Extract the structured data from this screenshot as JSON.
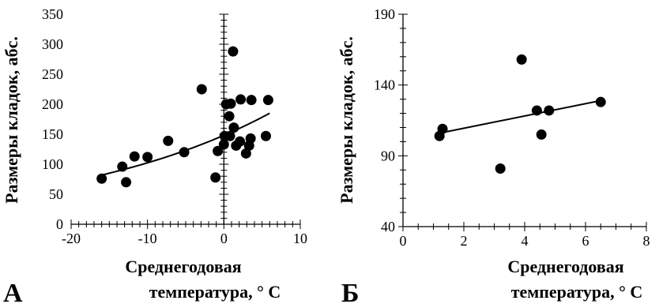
{
  "chart_data": [
    {
      "type": "scatter",
      "panel_label": "А",
      "xlabel_lines": [
        "Среднегодовая",
        "температура, ° С"
      ],
      "ylabel": "Размеры кладок, абс.",
      "xlim": [
        -20,
        10
      ],
      "ylim": [
        0,
        350
      ],
      "x_ticks": [
        "-20",
        "-10",
        "0",
        "10"
      ],
      "y_ticks": [
        "0",
        "50",
        "100",
        "150",
        "200",
        "250",
        "300",
        "350"
      ],
      "points": [
        {
          "x": -16,
          "y": 76
        },
        {
          "x": -13.3,
          "y": 96
        },
        {
          "x": -12.8,
          "y": 70
        },
        {
          "x": -11.7,
          "y": 113
        },
        {
          "x": -10,
          "y": 112
        },
        {
          "x": -7.3,
          "y": 139
        },
        {
          "x": -5.2,
          "y": 120
        },
        {
          "x": -2.9,
          "y": 225
        },
        {
          "x": -1.1,
          "y": 78
        },
        {
          "x": -0.8,
          "y": 122
        },
        {
          "x": 0,
          "y": 133
        },
        {
          "x": 0.1,
          "y": 147
        },
        {
          "x": 0.3,
          "y": 200
        },
        {
          "x": 0.7,
          "y": 180
        },
        {
          "x": 0.8,
          "y": 147
        },
        {
          "x": 0.9,
          "y": 201
        },
        {
          "x": 1.2,
          "y": 288
        },
        {
          "x": 1.3,
          "y": 161
        },
        {
          "x": 1.6,
          "y": 131
        },
        {
          "x": 2.1,
          "y": 138
        },
        {
          "x": 2.2,
          "y": 208
        },
        {
          "x": 2.9,
          "y": 118
        },
        {
          "x": 3.3,
          "y": 131
        },
        {
          "x": 3.5,
          "y": 143
        },
        {
          "x": 3.6,
          "y": 207
        },
        {
          "x": 5.5,
          "y": 147
        },
        {
          "x": 5.8,
          "y": 207
        }
      ],
      "trendline": {
        "type": "exponential",
        "x_from": -16,
        "x_to": 6,
        "y_from": 82,
        "y_to": 185
      }
    },
    {
      "type": "scatter",
      "panel_label": "Б",
      "xlabel_lines": [
        "Среднегодовая",
        "температура, ° С"
      ],
      "ylabel": "Размеры кладок, абс.",
      "xlim": [
        0,
        8
      ],
      "ylim": [
        40,
        190
      ],
      "x_ticks": [
        "0",
        "2",
        "4",
        "6",
        "8"
      ],
      "y_ticks": [
        "40",
        "90",
        "140",
        "190"
      ],
      "points": [
        {
          "x": 1.2,
          "y": 104
        },
        {
          "x": 1.3,
          "y": 109
        },
        {
          "x": 3.2,
          "y": 81
        },
        {
          "x": 3.9,
          "y": 158
        },
        {
          "x": 4.4,
          "y": 122
        },
        {
          "x": 4.55,
          "y": 105
        },
        {
          "x": 4.8,
          "y": 122
        },
        {
          "x": 6.5,
          "y": 128
        }
      ],
      "trendline": {
        "type": "linear",
        "x_from": 1.2,
        "x_to": 6.5,
        "y_from": 106,
        "y_to": 129
      }
    }
  ]
}
